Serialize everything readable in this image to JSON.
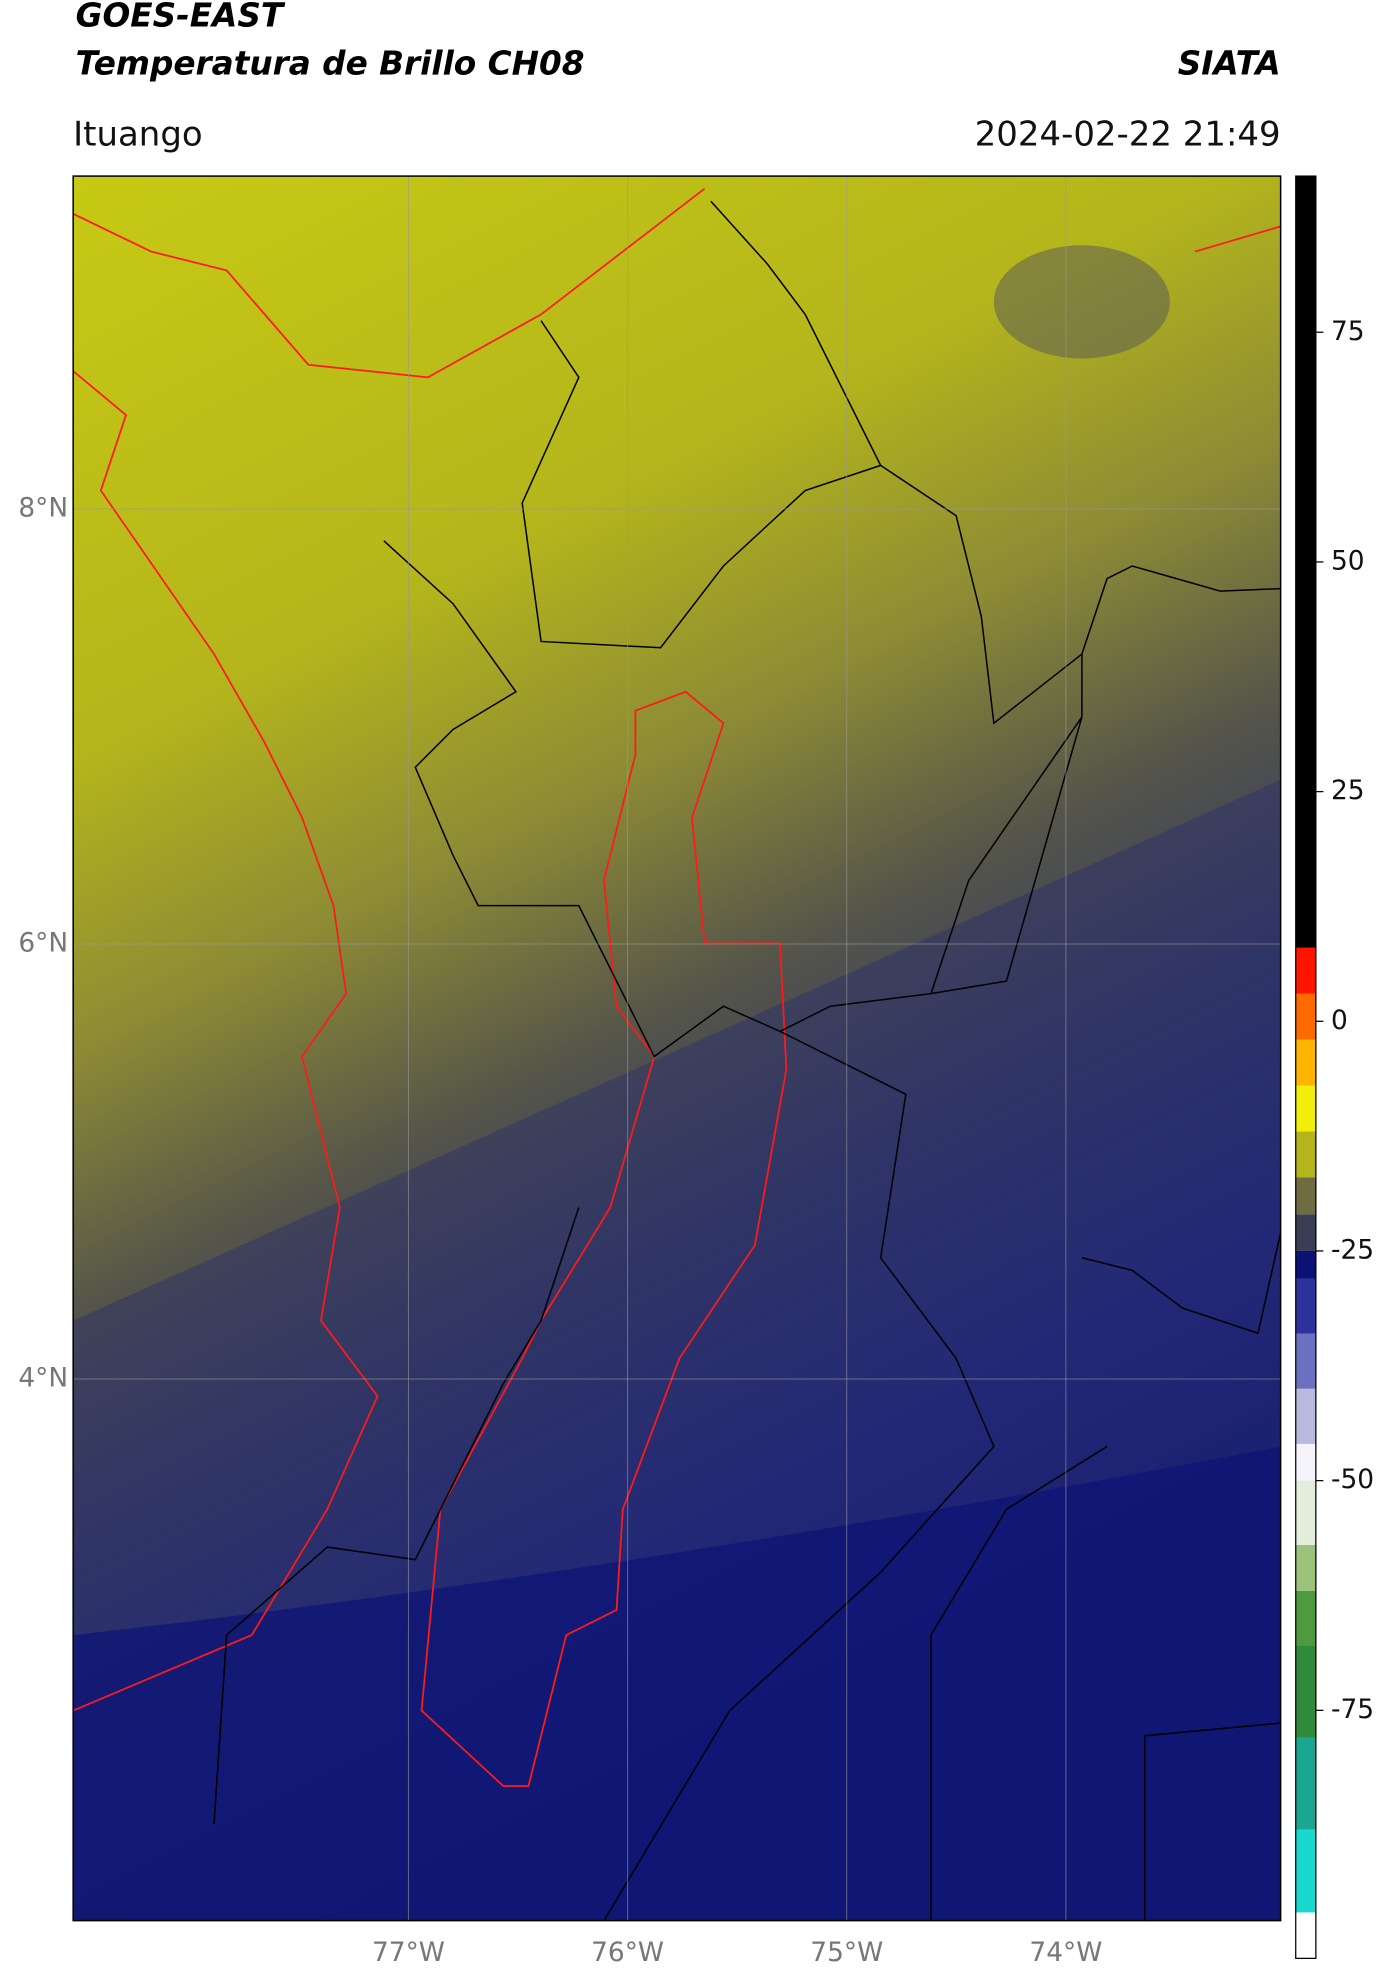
{
  "header": {
    "title": "GOES-EAST",
    "subtitle": "Temperatura de Brillo CH08",
    "agency": "SIATA",
    "location": "Ituango",
    "datetime": "2024-02-22 21:49"
  },
  "map": {
    "xlim": [
      -78.53,
      -73.02
    ],
    "ylim": [
      1.51,
      9.53
    ],
    "xticks": [
      {
        "value": -77,
        "label": "77°W"
      },
      {
        "value": -76,
        "label": "76°W"
      },
      {
        "value": -75,
        "label": "75°W"
      },
      {
        "value": -74,
        "label": "74°W"
      }
    ],
    "yticks": [
      {
        "value": 4,
        "label": "4°N"
      },
      {
        "value": 6,
        "label": "6°N"
      },
      {
        "value": 8,
        "label": "8°N"
      }
    ],
    "grid": true
  },
  "colorbar": {
    "ylim": [
      -102,
      92
    ],
    "yticks": [
      -75,
      -50,
      -25,
      0,
      25,
      50,
      75
    ],
    "segments": [
      {
        "from": -102,
        "color": "#ffffff"
      },
      {
        "from": -97,
        "color": "#19d8d0"
      },
      {
        "from": -88,
        "color": "#1aa690"
      },
      {
        "from": -78,
        "color": "#2f8a3a"
      },
      {
        "from": -68,
        "color": "#4f9a3f"
      },
      {
        "from": -62,
        "color": "#9cc27c"
      },
      {
        "from": -57,
        "color": "#e3eddb"
      },
      {
        "from": -50,
        "color": "#f4f4fa"
      },
      {
        "from": -46,
        "color": "#b7b9df"
      },
      {
        "from": -40,
        "color": "#6c70c0"
      },
      {
        "from": -34,
        "color": "#2c329a"
      },
      {
        "from": -28,
        "color": "#0c1275"
      },
      {
        "from": -25,
        "color": "#3a3e55"
      },
      {
        "from": -21,
        "color": "#6e6c40"
      },
      {
        "from": -17,
        "color": "#b4b51c"
      },
      {
        "from": -12,
        "color": "#f2ee08"
      },
      {
        "from": -7,
        "color": "#ffb400"
      },
      {
        "from": -2,
        "color": "#ff6a00"
      },
      {
        "from": 3,
        "color": "#ff1400"
      },
      {
        "from": 8,
        "color": "#000000"
      }
    ]
  }
}
